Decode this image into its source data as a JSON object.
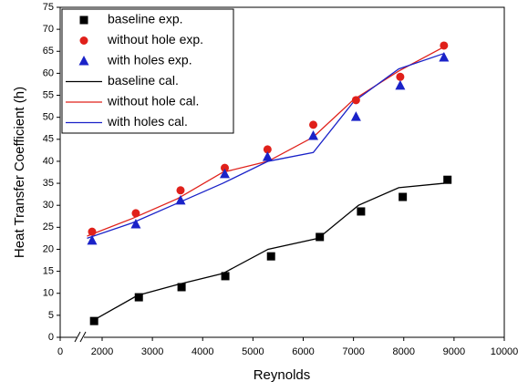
{
  "chart_data": {
    "type": "line",
    "xlabel": "Reynolds",
    "ylabel": "Heat Transfer Coefficient (h)",
    "xlim": [
      0,
      10000
    ],
    "xticks": [
      0,
      2000,
      3000,
      4000,
      5000,
      6000,
      7000,
      8000,
      9000,
      10000
    ],
    "x_break": true,
    "ylim": [
      0,
      75
    ],
    "yticks": [
      0,
      5,
      10,
      15,
      20,
      25,
      30,
      35,
      40,
      45,
      50,
      55,
      60,
      65,
      70,
      75
    ],
    "legend": "upper left",
    "series": [
      {
        "name": "baseline exp.",
        "color": "#000000",
        "marker": "square",
        "x": [
          1840,
          2730,
          3580,
          4450,
          5360,
          6330,
          7150,
          7980,
          8870
        ],
        "values": [
          3.7,
          9.1,
          11.4,
          13.9,
          18.4,
          22.8,
          28.6,
          31.9,
          35.8
        ]
      },
      {
        "name": "without hole exp.",
        "color": "#e0201a",
        "marker": "circle",
        "x": [
          1800,
          2670,
          3560,
          4440,
          5290,
          6200,
          7050,
          7930,
          8800
        ],
        "values": [
          24.0,
          28.2,
          33.4,
          38.5,
          42.7,
          48.3,
          53.9,
          59.2,
          66.3
        ]
      },
      {
        "name": "with holes exp.",
        "color": "#1a22c8",
        "marker": "triangle",
        "x": [
          1800,
          2670,
          3560,
          4440,
          5290,
          6200,
          7050,
          7930,
          8800
        ],
        "values": [
          22.0,
          25.7,
          31.1,
          37.1,
          41.0,
          45.8,
          50.1,
          57.2,
          63.6
        ]
      },
      {
        "name": "baseline cal.",
        "color": "#000000",
        "marker": "line",
        "x": [
          1800,
          2700,
          3500,
          4400,
          5300,
          6300,
          7100,
          7900,
          8800
        ],
        "values": [
          3.7,
          9.5,
          12,
          14.5,
          20,
          22.5,
          30,
          34,
          35
        ]
      },
      {
        "name": "without hole cal.",
        "color": "#e0201a",
        "marker": "line",
        "x": [
          1700,
          2600,
          3500,
          4400,
          5300,
          6200,
          7000,
          7900,
          8800
        ],
        "values": [
          23,
          27,
          31.5,
          37.5,
          40,
          45.5,
          54,
          60.5,
          66
        ]
      },
      {
        "name": "with holes cal.",
        "color": "#1a22c8",
        "marker": "line",
        "x": [
          1700,
          2600,
          3500,
          4400,
          5300,
          6200,
          7000,
          7900,
          8800
        ],
        "values": [
          22.5,
          26,
          30.5,
          35,
          40,
          42,
          53.5,
          61,
          64.5
        ]
      }
    ]
  }
}
